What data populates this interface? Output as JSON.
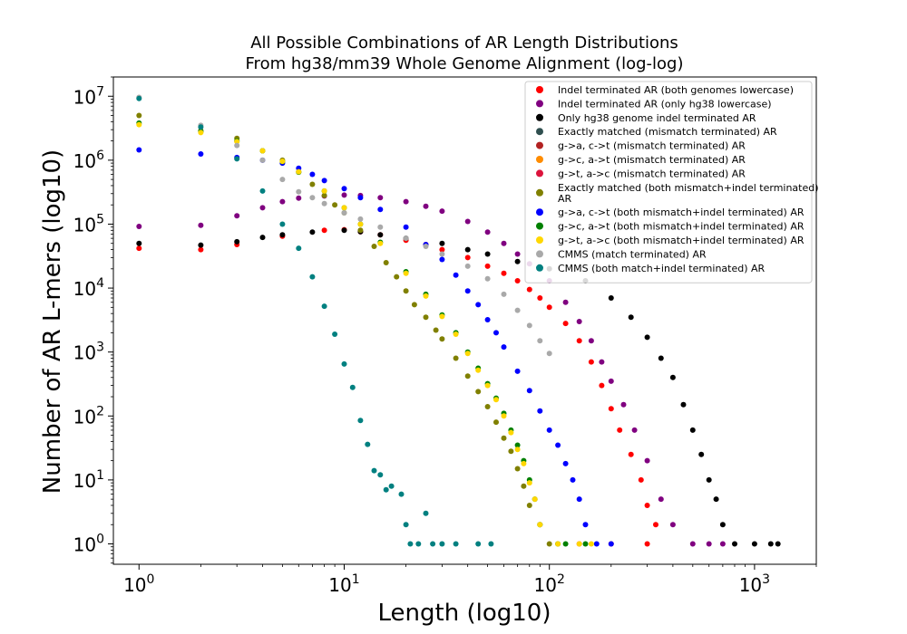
{
  "chart_data": {
    "type": "scatter",
    "title": "All Possible Combinations of AR Length Distributions",
    "subtitle": "From hg38/mm39 Whole Genome Alignment (log-log)",
    "xlabel": "Length (log10)",
    "ylabel": "Number of AR L-mers (log10)",
    "xscale": "log",
    "yscale": "log",
    "xlim": [
      0.75,
      2000
    ],
    "ylim": [
      0.48,
      20000000
    ],
    "xticks": [
      {
        "value": 1,
        "label": "10^0"
      },
      {
        "value": 10,
        "label": "10^1"
      },
      {
        "value": 100,
        "label": "10^2"
      },
      {
        "value": 1000,
        "label": "10^3"
      }
    ],
    "yticks": [
      {
        "value": 1,
        "label": "10^0"
      },
      {
        "value": 10,
        "label": "10^1"
      },
      {
        "value": 100,
        "label": "10^2"
      },
      {
        "value": 1000,
        "label": "10^3"
      },
      {
        "value": 10000,
        "label": "10^4"
      },
      {
        "value": 100000,
        "label": "10^5"
      },
      {
        "value": 1000000,
        "label": "10^6"
      },
      {
        "value": 10000000,
        "label": "10^7"
      }
    ],
    "grid": false,
    "legend_position": "top-right",
    "series": [
      {
        "name": "Indel terminated AR (both genomes lowercase)",
        "color": "#ff0000",
        "points": [
          [
            1,
            42000
          ],
          [
            2,
            40000
          ],
          [
            3,
            48000
          ],
          [
            5,
            65000
          ],
          [
            8,
            80000
          ],
          [
            10,
            82000
          ],
          [
            12,
            76000
          ],
          [
            15,
            68000
          ],
          [
            20,
            56000
          ],
          [
            25,
            48000
          ],
          [
            30,
            40000
          ],
          [
            40,
            30000
          ],
          [
            50,
            22000
          ],
          [
            60,
            17000
          ],
          [
            70,
            13000
          ],
          [
            80,
            9500
          ],
          [
            90,
            7000
          ],
          [
            100,
            5000
          ],
          [
            120,
            2800
          ],
          [
            140,
            1500
          ],
          [
            160,
            700
          ],
          [
            180,
            300
          ],
          [
            200,
            130
          ],
          [
            220,
            60
          ],
          [
            250,
            25
          ],
          [
            280,
            10
          ],
          [
            300,
            4
          ],
          [
            330,
            2
          ],
          [
            140,
            1
          ],
          [
            200,
            1
          ],
          [
            300,
            1
          ]
        ]
      },
      {
        "name": "Indel terminated AR (only hg38 lowercase)",
        "color": "#800080",
        "points": [
          [
            1,
            92000
          ],
          [
            2,
            96000
          ],
          [
            3,
            135000
          ],
          [
            4,
            180000
          ],
          [
            5,
            225000
          ],
          [
            6,
            255000
          ],
          [
            8,
            275000
          ],
          [
            10,
            285000
          ],
          [
            12,
            280000
          ],
          [
            15,
            260000
          ],
          [
            20,
            225000
          ],
          [
            25,
            190000
          ],
          [
            30,
            160000
          ],
          [
            40,
            110000
          ],
          [
            50,
            75000
          ],
          [
            60,
            50000
          ],
          [
            70,
            34000
          ],
          [
            80,
            24000
          ],
          [
            100,
            13000
          ],
          [
            120,
            6000
          ],
          [
            140,
            3000
          ],
          [
            160,
            1500
          ],
          [
            180,
            700
          ],
          [
            200,
            350
          ],
          [
            230,
            150
          ],
          [
            260,
            60
          ],
          [
            300,
            20
          ],
          [
            350,
            5
          ],
          [
            400,
            2
          ],
          [
            500,
            1
          ],
          [
            600,
            1
          ],
          [
            700,
            1
          ]
        ]
      },
      {
        "name": "Only hg38 genome indel terminated AR",
        "color": "#000000",
        "points": [
          [
            1,
            50000
          ],
          [
            2,
            47000
          ],
          [
            3,
            53000
          ],
          [
            4,
            62000
          ],
          [
            5,
            68000
          ],
          [
            7,
            75000
          ],
          [
            10,
            80000
          ],
          [
            12,
            76000
          ],
          [
            15,
            68000
          ],
          [
            20,
            60000
          ],
          [
            30,
            50000
          ],
          [
            40,
            40000
          ],
          [
            50,
            34000
          ],
          [
            70,
            26000
          ],
          [
            100,
            20000
          ],
          [
            150,
            13000
          ],
          [
            200,
            7000
          ],
          [
            250,
            3500
          ],
          [
            300,
            1700
          ],
          [
            350,
            800
          ],
          [
            400,
            400
          ],
          [
            450,
            150
          ],
          [
            500,
            60
          ],
          [
            550,
            25
          ],
          [
            600,
            10
          ],
          [
            650,
            5
          ],
          [
            700,
            2
          ],
          [
            800,
            1
          ],
          [
            1000,
            1
          ],
          [
            1200,
            1
          ],
          [
            1300,
            1
          ]
        ]
      },
      {
        "name": "Exactly matched (mismatch terminated) AR",
        "color": "#2f4f4f",
        "points": []
      },
      {
        "name": "g->a, c->t (mismatch terminated) AR",
        "color": "#b22222",
        "points": []
      },
      {
        "name": "g->c, a->t (mismatch terminated) AR",
        "color": "#ff8c00",
        "points": []
      },
      {
        "name": "g->t, a->c (mismatch terminated) AR",
        "color": "#dc143c",
        "points": []
      },
      {
        "name": "Exactly matched (both mismatch+indel terminated) AR",
        "color": "#808000",
        "points": [
          [
            1,
            5000000
          ],
          [
            2,
            2900000
          ],
          [
            3,
            2200000
          ],
          [
            4,
            1400000
          ],
          [
            5,
            1000000
          ],
          [
            6,
            660000
          ],
          [
            7,
            420000
          ],
          [
            8,
            280000
          ],
          [
            9,
            200000
          ],
          [
            10,
            150000
          ],
          [
            12,
            80000
          ],
          [
            14,
            45000
          ],
          [
            16,
            25000
          ],
          [
            18,
            15000
          ],
          [
            20,
            9000
          ],
          [
            22,
            5500
          ],
          [
            25,
            3500
          ],
          [
            28,
            2200
          ],
          [
            30,
            1600
          ],
          [
            35,
            800
          ],
          [
            40,
            420
          ],
          [
            45,
            240
          ],
          [
            50,
            140
          ],
          [
            55,
            80
          ],
          [
            60,
            45
          ],
          [
            65,
            28
          ],
          [
            70,
            15
          ],
          [
            75,
            8
          ],
          [
            80,
            4
          ],
          [
            90,
            2
          ],
          [
            100,
            1
          ],
          [
            110,
            1
          ]
        ]
      },
      {
        "name": "g->a, c->t (both mismatch+indel terminated) AR",
        "color": "#0000ff",
        "points": [
          [
            1,
            1450000
          ],
          [
            2,
            1250000
          ],
          [
            3,
            1100000
          ],
          [
            4,
            1000000
          ],
          [
            5,
            900000
          ],
          [
            6,
            750000
          ],
          [
            7,
            600000
          ],
          [
            8,
            480000
          ],
          [
            10,
            360000
          ],
          [
            12,
            260000
          ],
          [
            15,
            170000
          ],
          [
            20,
            90000
          ],
          [
            25,
            48000
          ],
          [
            30,
            28000
          ],
          [
            35,
            16000
          ],
          [
            40,
            9000
          ],
          [
            45,
            5500
          ],
          [
            50,
            3200
          ],
          [
            55,
            2000
          ],
          [
            60,
            1200
          ],
          [
            70,
            500
          ],
          [
            80,
            250
          ],
          [
            90,
            120
          ],
          [
            100,
            60
          ],
          [
            110,
            35
          ],
          [
            120,
            18
          ],
          [
            130,
            10
          ],
          [
            140,
            5
          ],
          [
            150,
            2
          ],
          [
            170,
            1
          ],
          [
            200,
            1
          ]
        ]
      },
      {
        "name": "g->c, a->t (both mismatch+indel terminated) AR",
        "color": "#008000",
        "points": [
          [
            1,
            3800000
          ],
          [
            2,
            2800000
          ],
          [
            3,
            2000000
          ],
          [
            4,
            1400000
          ],
          [
            5,
            950000
          ],
          [
            6,
            650000
          ],
          [
            8,
            330000
          ],
          [
            10,
            180000
          ],
          [
            12,
            100000
          ],
          [
            15,
            52000
          ],
          [
            20,
            18000
          ],
          [
            25,
            8000
          ],
          [
            30,
            3800
          ],
          [
            35,
            2000
          ],
          [
            40,
            1000
          ],
          [
            45,
            560
          ],
          [
            50,
            320
          ],
          [
            55,
            190
          ],
          [
            60,
            110
          ],
          [
            65,
            60
          ],
          [
            70,
            35
          ],
          [
            75,
            20
          ],
          [
            80,
            10
          ],
          [
            85,
            5
          ],
          [
            90,
            2
          ],
          [
            110,
            1
          ],
          [
            120,
            1
          ],
          [
            150,
            1
          ]
        ]
      },
      {
        "name": "g->t, a->c (both mismatch+indel terminated) AR",
        "color": "#ffd700",
        "points": [
          [
            1,
            3600000
          ],
          [
            2,
            2700000
          ],
          [
            3,
            1950000
          ],
          [
            4,
            1400000
          ],
          [
            5,
            960000
          ],
          [
            6,
            660000
          ],
          [
            8,
            330000
          ],
          [
            10,
            180000
          ],
          [
            12,
            100000
          ],
          [
            15,
            50000
          ],
          [
            20,
            17000
          ],
          [
            25,
            7500
          ],
          [
            30,
            3600
          ],
          [
            35,
            1900
          ],
          [
            40,
            950
          ],
          [
            45,
            520
          ],
          [
            50,
            300
          ],
          [
            55,
            180
          ],
          [
            60,
            100
          ],
          [
            65,
            55
          ],
          [
            70,
            30
          ],
          [
            75,
            18
          ],
          [
            80,
            9
          ],
          [
            85,
            5
          ],
          [
            90,
            2
          ],
          [
            110,
            1
          ],
          [
            140,
            1
          ],
          [
            160,
            1
          ]
        ]
      },
      {
        "name": "CMMS (match terminated) AR",
        "color": "#a9a9a9",
        "points": [
          [
            1,
            9600000
          ],
          [
            2,
            3500000
          ],
          [
            3,
            1700000
          ],
          [
            4,
            1000000
          ],
          [
            5,
            500000
          ],
          [
            6,
            320000
          ],
          [
            7,
            260000
          ],
          [
            8,
            210000
          ],
          [
            10,
            150000
          ],
          [
            12,
            120000
          ],
          [
            15,
            90000
          ],
          [
            20,
            60000
          ],
          [
            25,
            45000
          ],
          [
            30,
            34000
          ],
          [
            40,
            22000
          ],
          [
            50,
            14000
          ],
          [
            60,
            8000
          ],
          [
            70,
            4500
          ],
          [
            80,
            2600
          ],
          [
            90,
            1500
          ],
          [
            100,
            950
          ]
        ]
      },
      {
        "name": "CMMS (both match+indel terminated) AR",
        "color": "#008080",
        "points": [
          [
            1,
            9200000
          ],
          [
            2,
            3300000
          ],
          [
            3,
            1050000
          ],
          [
            4,
            330000
          ],
          [
            5,
            100000
          ],
          [
            6,
            42000
          ],
          [
            7,
            15000
          ],
          [
            8,
            5200
          ],
          [
            9,
            1900
          ],
          [
            10,
            650
          ],
          [
            11,
            280
          ],
          [
            12,
            85
          ],
          [
            13,
            36
          ],
          [
            14,
            14
          ],
          [
            15,
            12
          ],
          [
            16,
            7
          ],
          [
            17,
            8
          ],
          [
            19,
            6
          ],
          [
            20,
            2
          ],
          [
            21,
            1
          ],
          [
            23,
            1
          ],
          [
            25,
            3
          ],
          [
            27,
            1
          ],
          [
            30,
            1
          ],
          [
            35,
            1
          ],
          [
            45,
            1
          ],
          [
            52,
            1
          ]
        ]
      }
    ]
  }
}
